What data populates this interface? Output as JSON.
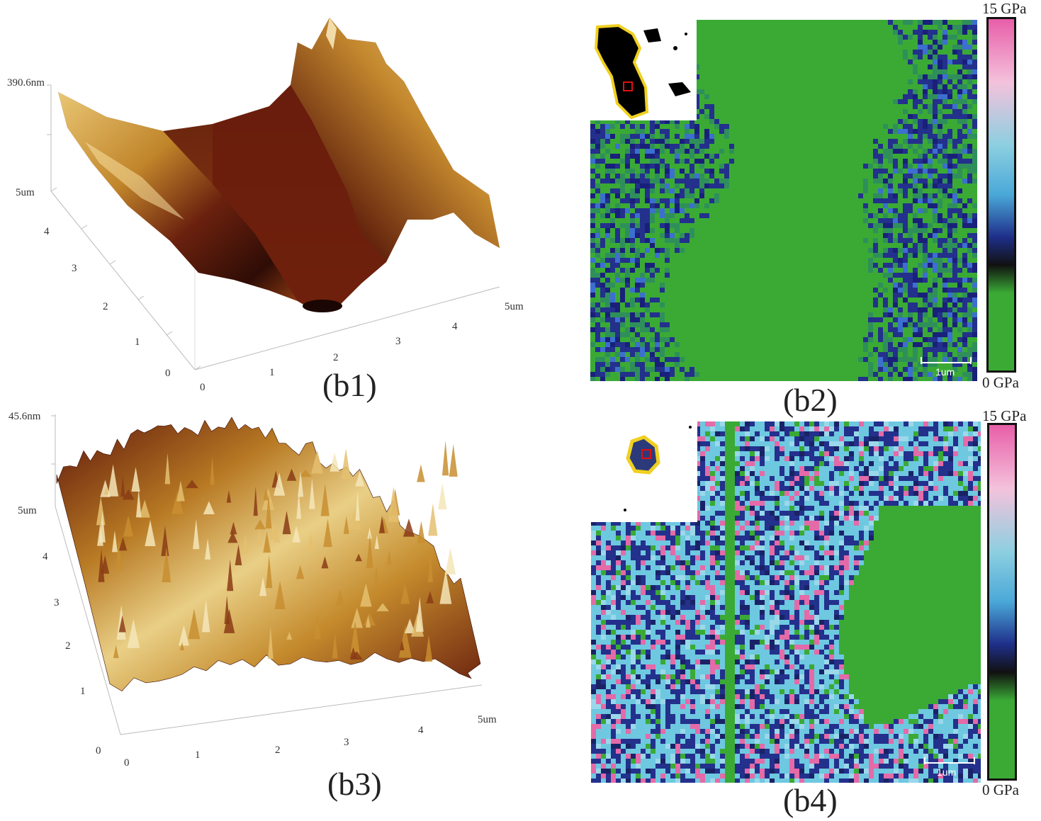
{
  "panels": {
    "b1": {
      "caption": "(b1)",
      "z_max_label": "390.6nm",
      "y_ticks": [
        "0",
        "1",
        "2",
        "3",
        "4",
        "5um"
      ],
      "x_ticks": [
        "0",
        "1",
        "2",
        "3",
        "4",
        "5um"
      ],
      "surface_colors": [
        "#2a0d06",
        "#5c1a0c",
        "#8a3c14",
        "#b8741f",
        "#d9a540",
        "#f2d98a"
      ]
    },
    "b2": {
      "caption": "(b2)",
      "colorbar_max": "15 GPa",
      "colorbar_min": "0 GPa",
      "scale_bar": "1um",
      "map_colors": [
        "#3aaa35",
        "#23308c",
        "#19207a",
        "#3c6fd0",
        "#2f8f5a"
      ]
    },
    "b3": {
      "caption": "(b3)",
      "z_max_label": "45.6nm",
      "y_ticks": [
        "0",
        "1",
        "2",
        "3",
        "4",
        "5um"
      ],
      "x_ticks": [
        "0",
        "1",
        "2",
        "3",
        "4",
        "5um"
      ]
    },
    "b4": {
      "caption": "(b4)",
      "colorbar_max": "15 GPa",
      "colorbar_min": "0 GPa",
      "scale_bar": "1um",
      "map_colors": [
        "#6ec8e0",
        "#23308c",
        "#e46aa8",
        "#3aaa35",
        "#9ad8ea"
      ]
    }
  },
  "colorbar_stops": [
    "#e85ea8",
    "#f4c2dc",
    "#8ccfe0",
    "#4aa8d8",
    "#1f2f8a",
    "#111111",
    "#3aaa35",
    "#3aaa35"
  ]
}
